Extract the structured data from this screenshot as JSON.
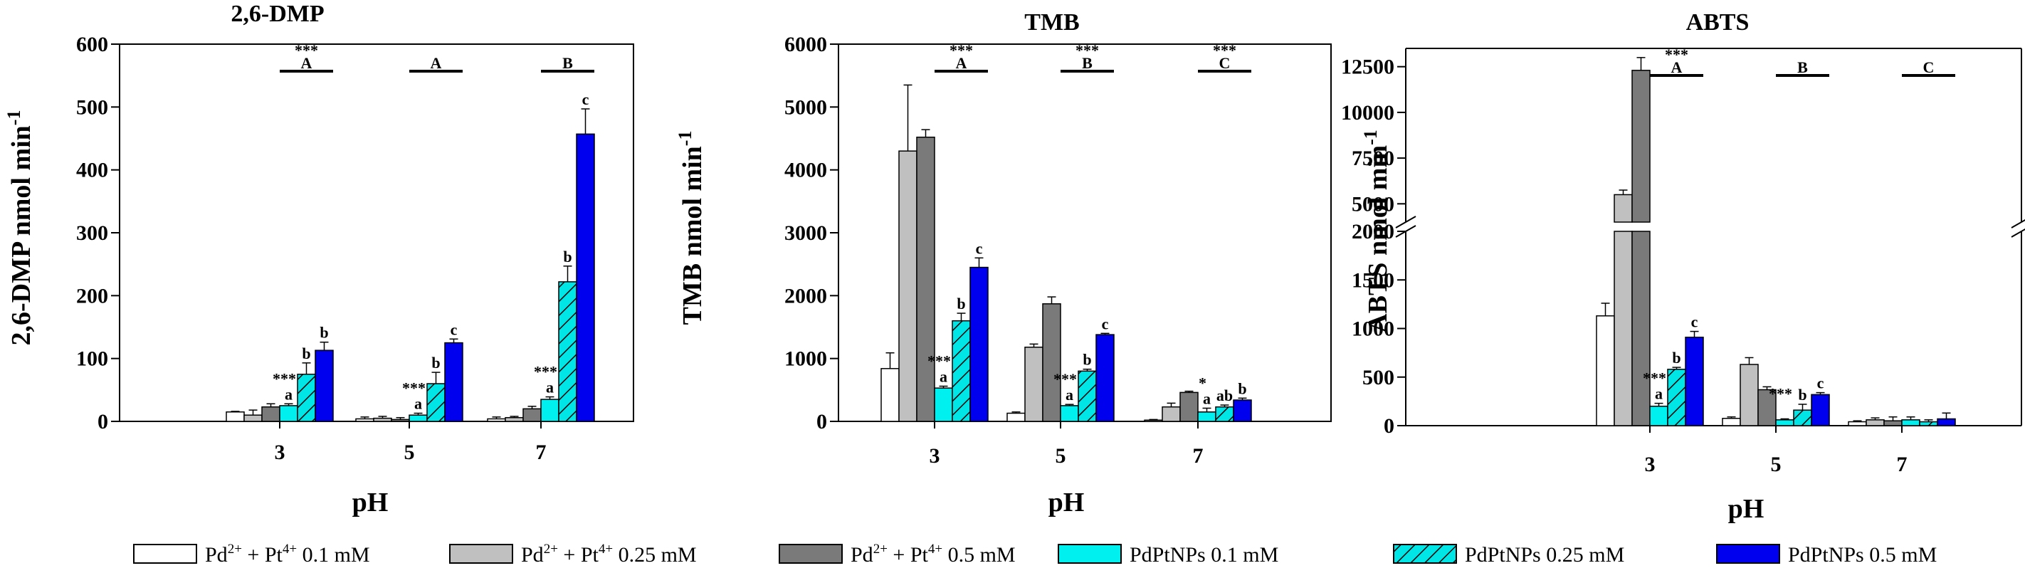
{
  "colors": {
    "pd_pt_0_1": "#ffffff",
    "pd_pt_0_25": "#c0c0c0",
    "pd_pt_0_5": "#7a7a7a",
    "nps_0_1": "#00f0f0",
    "nps_0_25": "#00e6e6",
    "nps_0_5": "#0000ee",
    "hatch": "#000000"
  },
  "legend": [
    {
      "key": "pd_pt_0_1",
      "text": "Pd²⁺ + Pt⁴⁺ 0.1 mM",
      "base": "Pd",
      "sup1": "2+",
      "mid": " + Pt",
      "sup2": "4+",
      "tail": " 0.1 mM",
      "fill": "#ffffff"
    },
    {
      "key": "pd_pt_0_25",
      "text": "Pd²⁺ + Pt⁴⁺ 0.25 mM",
      "base": "Pd",
      "sup1": "2+",
      "mid": " + Pt",
      "sup2": "4+",
      "tail": " 0.25 mM",
      "fill": "#c0c0c0"
    },
    {
      "key": "pd_pt_0_5",
      "text": "Pd²⁺ + Pt⁴⁺ 0.5 mM",
      "base": "Pd",
      "sup1": "2+",
      "mid": " + Pt",
      "sup2": "4+",
      "tail": " 0.5 mM",
      "fill": "#7a7a7a"
    },
    {
      "key": "nps_0_1",
      "text": "PdPtNPs 0.1 mM",
      "fill": "#00f0f0"
    },
    {
      "key": "nps_0_25",
      "text": "PdPtNPs 0.25 mM",
      "fill": "#00e6e6",
      "hatch": true
    },
    {
      "key": "nps_0_5",
      "text": "PdPtNPs 0.5 mM",
      "fill": "#0000ee"
    }
  ],
  "chart_data": [
    {
      "type": "bar",
      "title": "2,6-DMP",
      "xlabel": "pH",
      "ylabel": "2,6-DMP nmol min-1",
      "ylabel_base": "2,6-DMP nmol min",
      "ylabel_sup": "-1",
      "categories": [
        "3",
        "5",
        "7"
      ],
      "ylim": [
        0,
        600
      ],
      "yticks": [
        "0",
        "100",
        "200",
        "300",
        "400",
        "500",
        "600"
      ],
      "series": [
        {
          "name": "Pd2+ + Pt4+ 0.1 mM",
          "values": [
            15,
            4,
            4
          ],
          "errors": [
            1,
            3,
            3
          ]
        },
        {
          "name": "Pd2+ + Pt4+ 0.25 mM",
          "values": [
            10,
            5,
            6
          ],
          "errors": [
            8,
            3,
            2
          ]
        },
        {
          "name": "Pd2+ + Pt4+ 0.5 mM",
          "values": [
            23,
            3,
            20
          ],
          "errors": [
            5,
            3,
            4
          ]
        },
        {
          "name": "PdPtNPs 0.1 mM",
          "values": [
            25,
            10,
            35
          ],
          "errors": [
            3,
            3,
            4
          ]
        },
        {
          "name": "PdPtNPs 0.25 mM",
          "values": [
            75,
            60,
            222
          ],
          "errors": [
            18,
            18,
            25
          ]
        },
        {
          "name": "PdPtNPs 0.5 mM",
          "values": [
            113,
            125,
            457
          ],
          "errors": [
            13,
            6,
            40
          ]
        }
      ],
      "bar_labels": [
        {
          "cat": 0,
          "series": 3,
          "text": "a"
        },
        {
          "cat": 0,
          "series": 4,
          "text": "b"
        },
        {
          "cat": 0,
          "series": 5,
          "text": "b"
        },
        {
          "cat": 1,
          "series": 3,
          "text": "a"
        },
        {
          "cat": 1,
          "series": 4,
          "text": "b"
        },
        {
          "cat": 1,
          "series": 5,
          "text": "c"
        },
        {
          "cat": 2,
          "series": 3,
          "text": "a"
        },
        {
          "cat": 2,
          "series": 4,
          "text": "b"
        },
        {
          "cat": 2,
          "series": 5,
          "text": "c"
        }
      ],
      "stars": [
        {
          "cat": 0,
          "series": 3,
          "text": "***"
        },
        {
          "cat": 1,
          "series": 3,
          "text": "***"
        },
        {
          "cat": 2,
          "series": 3,
          "text": "***"
        }
      ],
      "group_letters": [
        {
          "cat": 0,
          "text": "A",
          "stars": "***"
        },
        {
          "cat": 1,
          "text": "A",
          "stars": ""
        },
        {
          "cat": 2,
          "text": "B",
          "stars": ""
        }
      ]
    },
    {
      "type": "bar",
      "title": "TMB",
      "xlabel": "pH",
      "ylabel": "TMB nmol min-1",
      "ylabel_base": "TMB nmol min",
      "ylabel_sup": "-1",
      "categories": [
        "3",
        "5",
        "7"
      ],
      "ylim": [
        0,
        6000
      ],
      "yticks": [
        "0",
        "1000",
        "2000",
        "3000",
        "4000",
        "5000",
        "6000"
      ],
      "series": [
        {
          "name": "Pd2+ + Pt4+ 0.1 mM",
          "values": [
            840,
            130,
            20
          ],
          "errors": [
            250,
            20,
            10
          ]
        },
        {
          "name": "Pd2+ + Pt4+ 0.25 mM",
          "values": [
            4300,
            1180,
            230
          ],
          "errors": [
            1050,
            50,
            60
          ]
        },
        {
          "name": "Pd2+ + Pt4+ 0.5 mM",
          "values": [
            4520,
            1870,
            460
          ],
          "errors": [
            120,
            110,
            20
          ]
        },
        {
          "name": "PdPtNPs 0.1 mM",
          "values": [
            530,
            250,
            150
          ],
          "errors": [
            30,
            20,
            60
          ]
        },
        {
          "name": "PdPtNPs 0.25 mM",
          "values": [
            1600,
            800,
            230
          ],
          "errors": [
            120,
            30,
            30
          ]
        },
        {
          "name": "PdPtNPs 0.5 mM",
          "values": [
            2450,
            1380,
            340
          ],
          "errors": [
            150,
            20,
            30
          ]
        }
      ],
      "bar_labels": [
        {
          "cat": 0,
          "series": 3,
          "text": "a"
        },
        {
          "cat": 0,
          "series": 4,
          "text": "b"
        },
        {
          "cat": 0,
          "series": 5,
          "text": "c"
        },
        {
          "cat": 1,
          "series": 3,
          "text": "a"
        },
        {
          "cat": 1,
          "series": 4,
          "text": "b"
        },
        {
          "cat": 1,
          "series": 5,
          "text": "c"
        },
        {
          "cat": 2,
          "series": 3,
          "text": "a"
        },
        {
          "cat": 2,
          "series": 4,
          "text": "ab"
        },
        {
          "cat": 2,
          "series": 5,
          "text": "b"
        }
      ],
      "stars": [
        {
          "cat": 0,
          "series": 3,
          "text": "***"
        },
        {
          "cat": 1,
          "series": 3,
          "text": "***"
        },
        {
          "cat": 2,
          "series": 3,
          "text": "*"
        }
      ],
      "group_letters": [
        {
          "cat": 0,
          "text": "A",
          "stars": "***"
        },
        {
          "cat": 1,
          "text": "B",
          "stars": "***"
        },
        {
          "cat": 2,
          "text": "C",
          "stars": "***"
        }
      ]
    },
    {
      "type": "bar",
      "title": "ABTS",
      "xlabel": "pH",
      "ylabel": "ABTS nmol min-1",
      "ylabel_base": "ABTS nmol min",
      "ylabel_sup": "-1",
      "categories": [
        "3",
        "5",
        "7"
      ],
      "broken_axis": {
        "lower": [
          0,
          2000
        ],
        "upper": [
          4000,
          13500
        ]
      },
      "yticks_lower": [
        "0",
        "500",
        "1000",
        "1500",
        "2000"
      ],
      "yticks_upper": [
        "5000",
        "7500",
        "10000",
        "12500"
      ],
      "series": [
        {
          "name": "Pd2+ + Pt4+ 0.1 mM",
          "values": [
            1130,
            75,
            40
          ],
          "errors": [
            130,
            15,
            10
          ]
        },
        {
          "name": "Pd2+ + Pt4+ 0.25 mM",
          "values": [
            5500,
            630,
            60
          ],
          "errors": [
            250,
            70,
            20
          ]
        },
        {
          "name": "Pd2+ + Pt4+ 0.5 mM",
          "values": [
            12300,
            370,
            50
          ],
          "errors": [
            700,
            30,
            40
          ]
        },
        {
          "name": "PdPtNPs 0.1 mM",
          "values": [
            200,
            60,
            60
          ],
          "errors": [
            30,
            10,
            30
          ]
        },
        {
          "name": "PdPtNPs 0.25 mM",
          "values": [
            580,
            160,
            40
          ],
          "errors": [
            20,
            60,
            20
          ]
        },
        {
          "name": "PdPtNPs 0.5 mM",
          "values": [
            910,
            320,
            70
          ],
          "errors": [
            60,
            20,
            60
          ]
        }
      ],
      "bar_labels": [
        {
          "cat": 0,
          "series": 3,
          "text": "a"
        },
        {
          "cat": 0,
          "series": 4,
          "text": "b"
        },
        {
          "cat": 0,
          "series": 5,
          "text": "c"
        },
        {
          "cat": 1,
          "series": 4,
          "text": "b"
        },
        {
          "cat": 1,
          "series": 5,
          "text": "c"
        }
      ],
      "stars": [
        {
          "cat": 0,
          "series": 3,
          "text": "***"
        },
        {
          "cat": 1,
          "series": 3,
          "text": "***"
        }
      ],
      "group_letters": [
        {
          "cat": 0,
          "text": "A",
          "stars": "***"
        },
        {
          "cat": 1,
          "text": "B",
          "stars": ""
        },
        {
          "cat": 2,
          "text": "C",
          "stars": ""
        }
      ]
    }
  ]
}
